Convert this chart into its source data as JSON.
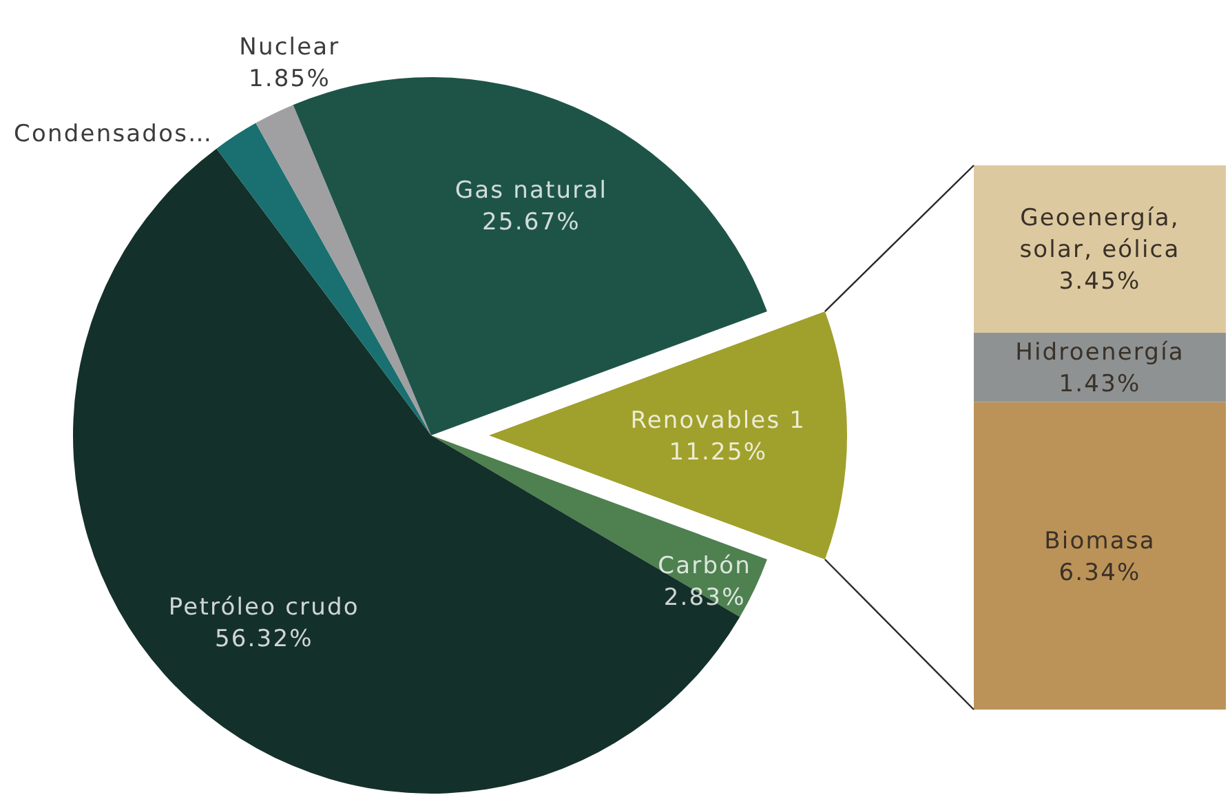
{
  "chart_data": [
    {
      "type": "pie",
      "categories": [
        "Renovables 1",
        "Carbón",
        "Petróleo crudo",
        "Condensados…",
        "Nuclear",
        "Gas natural"
      ],
      "values": [
        11.25,
        2.83,
        56.32,
        2.08,
        1.85,
        25.67
      ],
      "colors": [
        "#a0a02c",
        "#4e8050",
        "#14302a",
        "#1a7070",
        "#a0a0a2",
        "#1e5448"
      ],
      "value_labels": [
        "11.25%",
        "2.83%",
        "56.32%",
        null,
        "1.85%",
        "25.67%"
      ]
    },
    {
      "type": "bar",
      "categories": [
        null
      ],
      "stacked": true,
      "series": [
        {
          "name": "Biomasa",
          "color": "#bb9358",
          "values": [
            6.34
          ],
          "value_labels": [
            "6.34%"
          ]
        },
        {
          "name": "Hidroenergía",
          "color": "#8e9292",
          "values": [
            1.43
          ],
          "value_labels": [
            "1.43%"
          ]
        },
        {
          "name": "Geoenergía, solar, eólica",
          "color": "#dcc9a0",
          "values": [
            3.45
          ],
          "value_labels": [
            "3.45%"
          ]
        }
      ]
    }
  ]
}
